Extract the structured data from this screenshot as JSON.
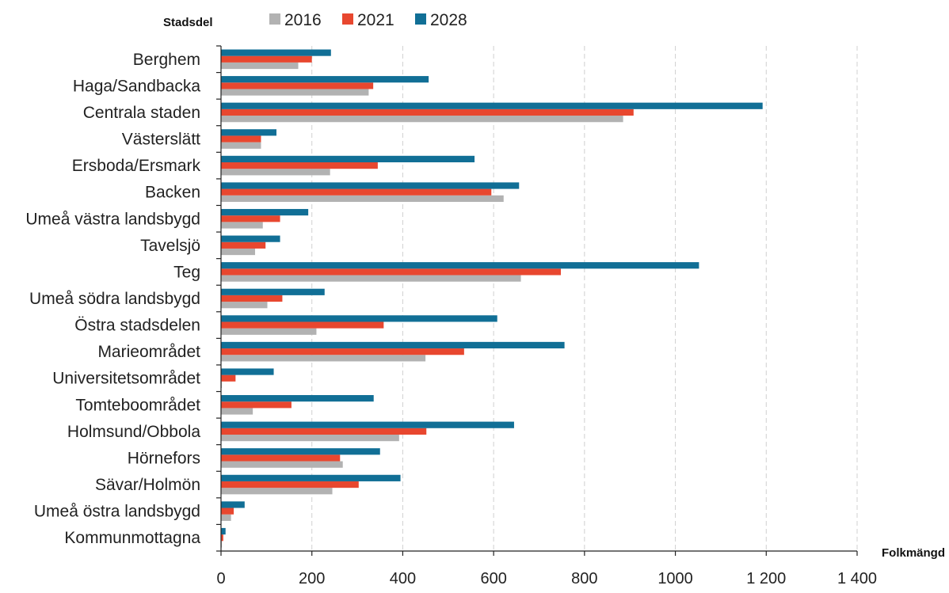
{
  "chart_data": {
    "type": "bar",
    "orientation": "horizontal",
    "ylabel": "Stadsdel",
    "xlabel": "Folkmängd",
    "xlim": [
      0,
      1400
    ],
    "x_ticks": [
      {
        "value": 0,
        "label": "0"
      },
      {
        "value": 200,
        "label": "200"
      },
      {
        "value": 400,
        "label": "400"
      },
      {
        "value": 600,
        "label": "600"
      },
      {
        "value": 800,
        "label": "800"
      },
      {
        "value": 1000,
        "label": "1000"
      },
      {
        "value": 1200,
        "label": "1 200"
      },
      {
        "value": 1400,
        "label": "1 400"
      }
    ],
    "grid": "vertical-dashed",
    "legend_position": "top",
    "categories": [
      "Berghem",
      "Haga/Sandbacka",
      "Centrala staden",
      "Västerslätt",
      "Ersboda/Ersmark",
      "Backen",
      "Umeå västra landsbygd",
      "Tavelsjö",
      "Teg",
      "Umeå södra landsbygd",
      "Östra stadsdelen",
      "Marieområdet",
      "Universitetsområdet",
      "Tomteboområdet",
      "Holmsund/Obbola",
      "Hörnefors",
      "Sävar/Holmön",
      "Umeå östra landsbygd",
      "Kommunmottagna"
    ],
    "series": [
      {
        "name": "2016",
        "color": "#b2b2b2",
        "values": [
          170,
          325,
          885,
          88,
          240,
          622,
          92,
          75,
          660,
          102,
          210,
          450,
          2,
          70,
          392,
          268,
          245,
          22,
          2
        ]
      },
      {
        "name": "2021",
        "color": "#e8472f",
        "values": [
          200,
          335,
          908,
          88,
          345,
          595,
          130,
          98,
          748,
          135,
          358,
          535,
          32,
          155,
          452,
          262,
          303,
          28,
          5
        ]
      },
      {
        "name": "2028",
        "color": "#116f96",
        "values": [
          242,
          457,
          1192,
          122,
          558,
          656,
          192,
          130,
          1052,
          228,
          608,
          756,
          116,
          336,
          645,
          350,
          395,
          52,
          10
        ]
      }
    ]
  }
}
